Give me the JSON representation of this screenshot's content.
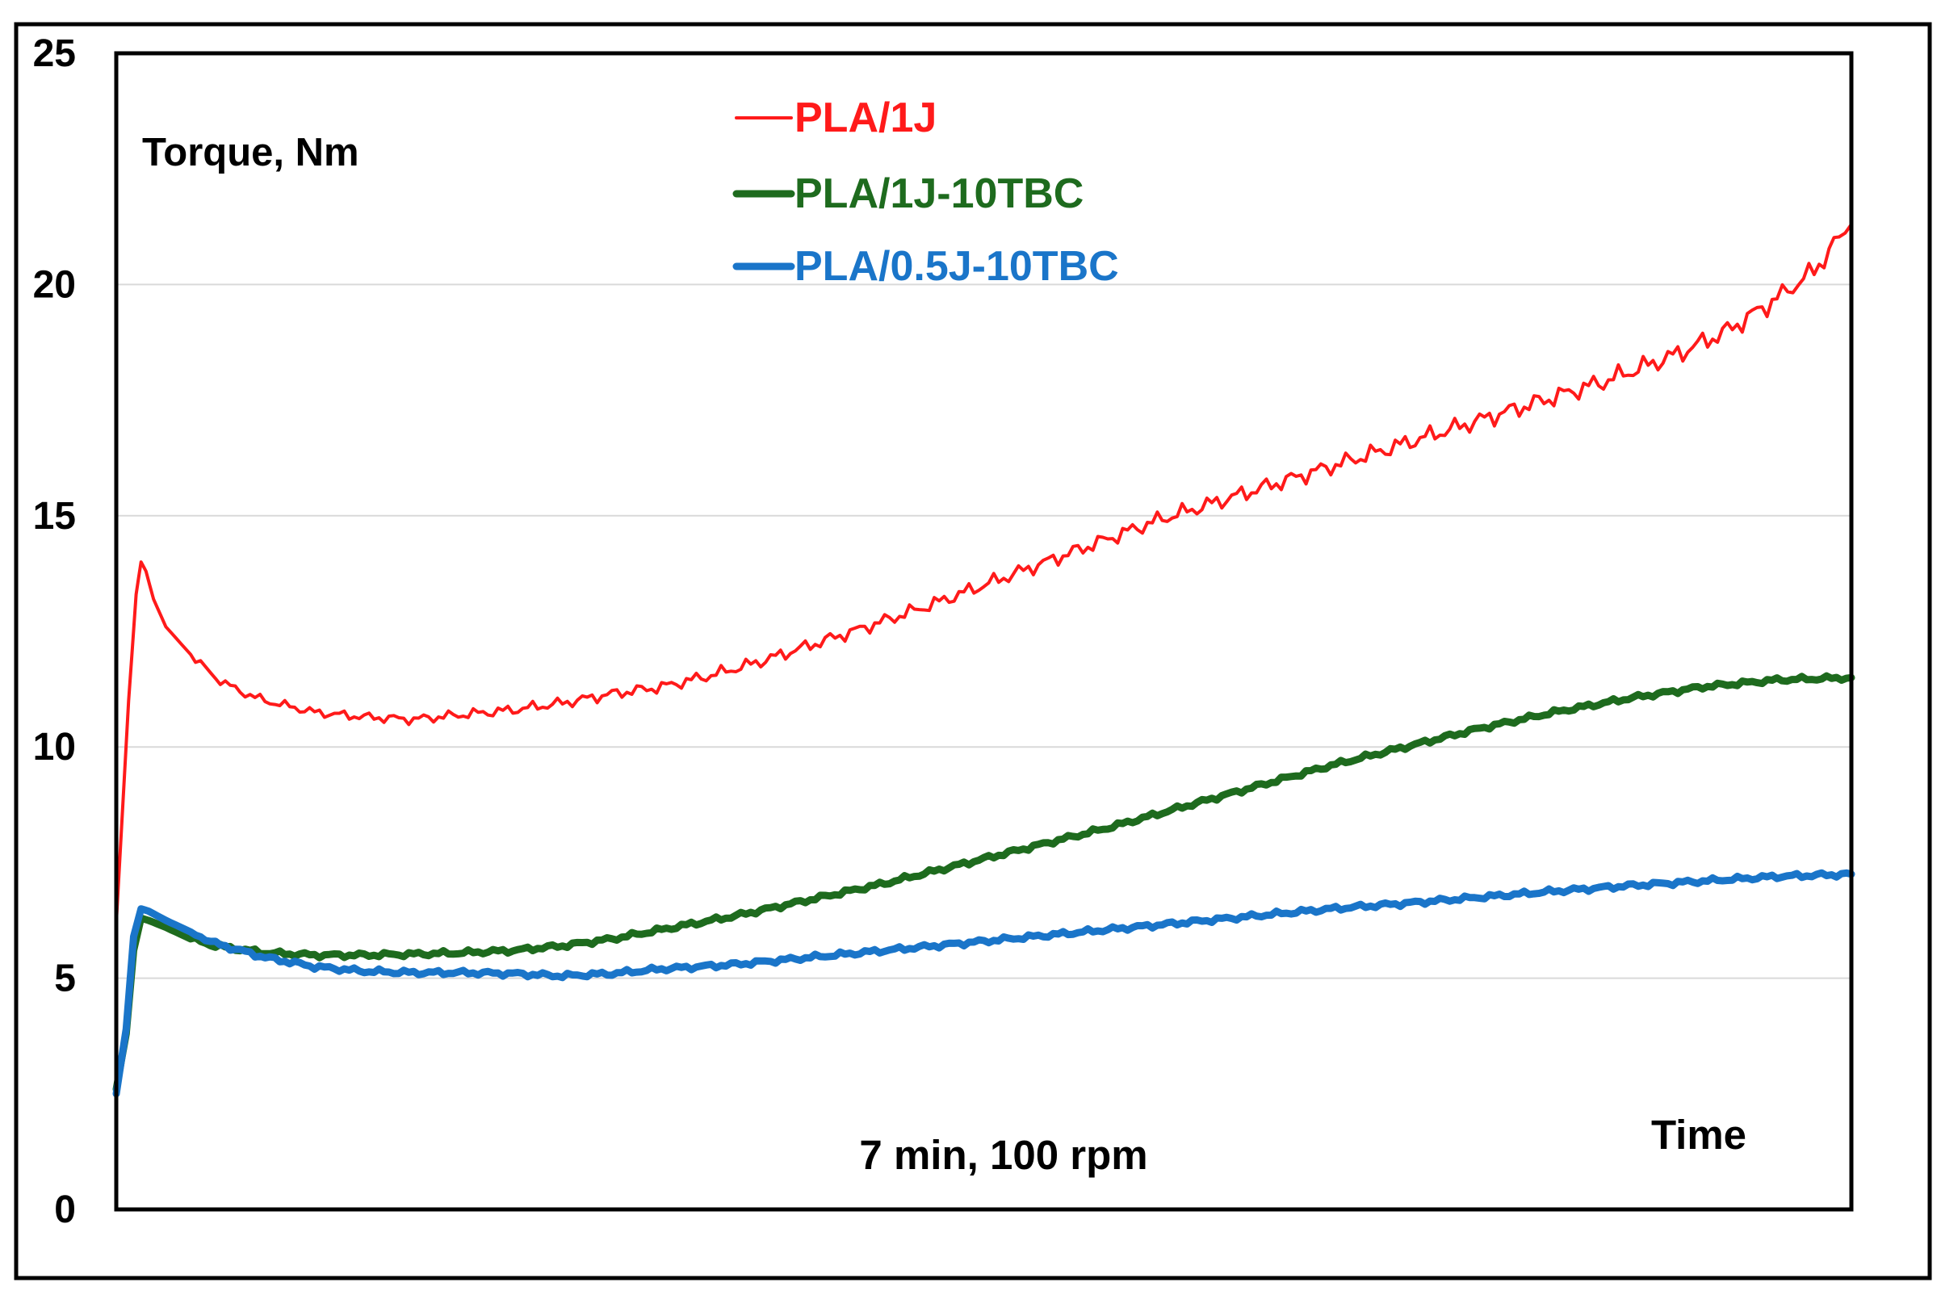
{
  "chart_data": {
    "type": "line",
    "title": "",
    "xlabel": "Time",
    "ylabel": "Torque, Nm",
    "annotation": "7 min, 100 rpm",
    "ylim": [
      0,
      25
    ],
    "xlim": [
      0,
      7
    ],
    "yticks": [
      0,
      5,
      10,
      15,
      20,
      25
    ],
    "ytick_labels": [
      "0",
      "5",
      "10",
      "15",
      "20",
      "25"
    ],
    "grid": true,
    "legend_position": "top-center",
    "series": [
      {
        "name": "PLA/1J",
        "color": "#ff1a1a",
        "x": [
          0,
          0.05,
          0.08,
          0.1,
          0.12,
          0.15,
          0.2,
          0.3,
          0.4,
          0.5,
          0.6,
          0.8,
          1.0,
          1.2,
          1.4,
          1.6,
          1.8,
          2.0,
          2.2,
          2.4,
          2.6,
          2.8,
          3.0,
          3.3,
          3.6,
          3.9,
          4.2,
          4.5,
          4.8,
          5.1,
          5.4,
          5.7,
          6.0,
          6.3,
          6.5,
          6.7,
          6.85,
          6.95,
          7.0
        ],
        "y": [
          6.2,
          11.0,
          13.3,
          14.0,
          13.8,
          13.2,
          12.6,
          12.0,
          11.5,
          11.2,
          11.0,
          10.75,
          10.65,
          10.6,
          10.7,
          10.8,
          10.95,
          11.15,
          11.3,
          11.55,
          11.85,
          12.2,
          12.55,
          13.1,
          13.7,
          14.3,
          14.9,
          15.4,
          15.9,
          16.4,
          16.9,
          17.4,
          17.9,
          18.5,
          19.0,
          19.7,
          20.3,
          21.0,
          21.3
        ]
      },
      {
        "name": "PLA/1J-10TBC",
        "color": "#1e6b1e",
        "x": [
          0,
          0.04,
          0.07,
          0.1,
          0.13,
          0.2,
          0.3,
          0.4,
          0.6,
          0.8,
          1.0,
          1.2,
          1.4,
          1.6,
          1.8,
          2.0,
          2.2,
          2.5,
          2.8,
          3.1,
          3.4,
          3.7,
          4.0,
          4.3,
          4.6,
          4.9,
          5.2,
          5.5,
          5.8,
          6.1,
          6.4,
          6.7,
          7.0
        ],
        "y": [
          2.6,
          3.8,
          5.6,
          6.3,
          6.25,
          6.1,
          5.85,
          5.7,
          5.55,
          5.5,
          5.5,
          5.52,
          5.55,
          5.6,
          5.7,
          5.85,
          6.05,
          6.35,
          6.7,
          7.05,
          7.45,
          7.85,
          8.25,
          8.7,
          9.15,
          9.6,
          10.0,
          10.4,
          10.75,
          11.05,
          11.3,
          11.45,
          11.5
        ]
      },
      {
        "name": "PLA/0.5J-10TBC",
        "color": "#1a75c9",
        "x": [
          0,
          0.04,
          0.07,
          0.1,
          0.13,
          0.2,
          0.3,
          0.4,
          0.6,
          0.8,
          1.0,
          1.2,
          1.4,
          1.6,
          1.8,
          2.0,
          2.2,
          2.5,
          2.8,
          3.1,
          3.4,
          3.7,
          4.0,
          4.3,
          4.6,
          4.9,
          5.2,
          5.5,
          5.8,
          6.1,
          6.4,
          6.7,
          7.0
        ],
        "y": [
          2.5,
          3.9,
          5.9,
          6.5,
          6.45,
          6.25,
          6.0,
          5.75,
          5.45,
          5.25,
          5.15,
          5.12,
          5.12,
          5.1,
          5.05,
          5.1,
          5.2,
          5.3,
          5.45,
          5.6,
          5.75,
          5.9,
          6.05,
          6.2,
          6.35,
          6.5,
          6.62,
          6.75,
          6.88,
          7.0,
          7.1,
          7.2,
          7.25
        ]
      }
    ]
  }
}
